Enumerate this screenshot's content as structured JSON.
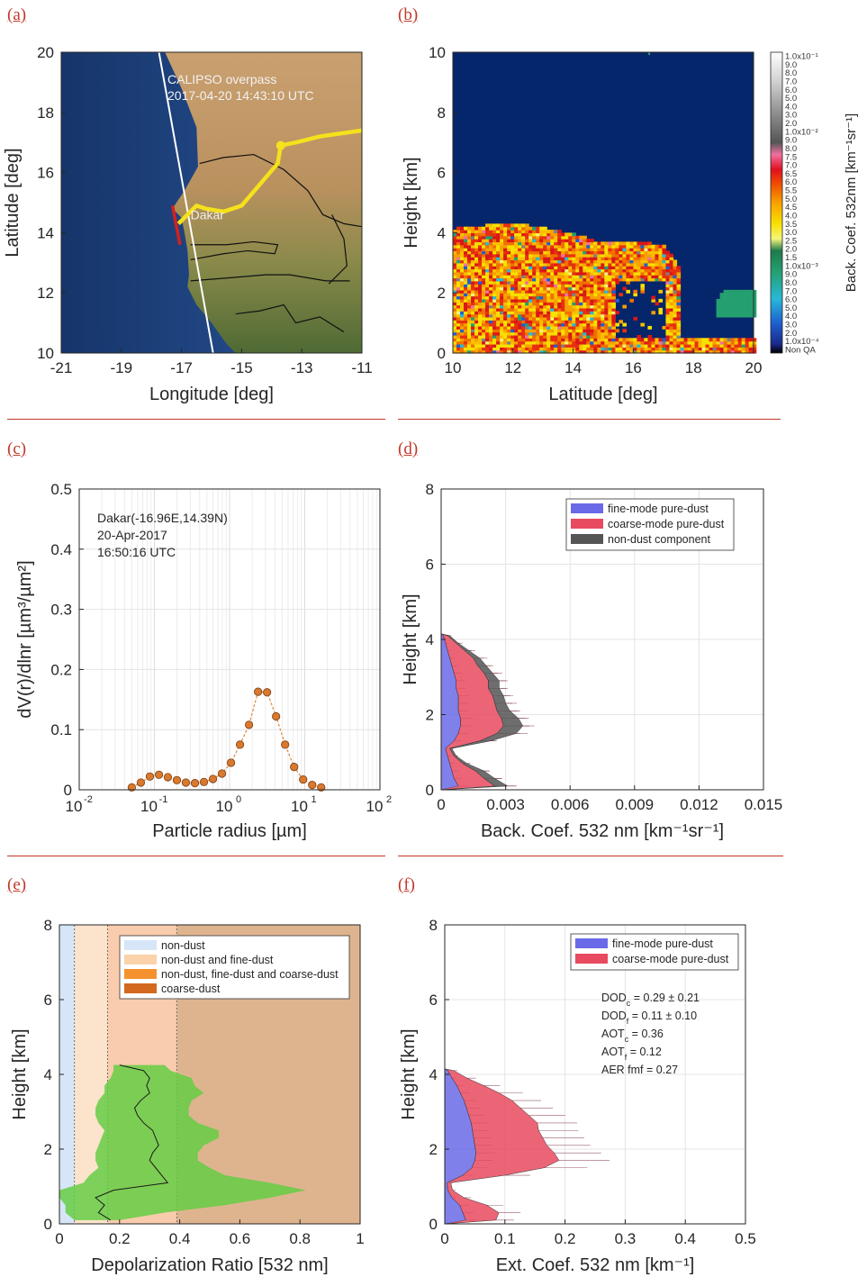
{
  "panel_letters": [
    "(a)",
    "(b)",
    "(c)",
    "(d)",
    "(e)",
    "(f)"
  ],
  "colors": {
    "accent_red": "#c0392b",
    "ocean": "#1d3f7a",
    "land": "#b88a55",
    "track": "#f5e11c",
    "coarse": "#e84a5f",
    "fine": "#6a6ae8",
    "nondust": "#555555",
    "depol_fill": "#66cc44"
  },
  "chart_data": [
    {
      "id": "a",
      "type": "map",
      "xlabel": "Longitude [deg]",
      "ylabel": "Latitude [deg]",
      "xlim": [
        -21,
        -11
      ],
      "ylim": [
        10,
        20
      ],
      "xticks": [
        "-21",
        "-19",
        "-17",
        "-15",
        "-13",
        "-11"
      ],
      "yticks": [
        "10",
        "12",
        "14",
        "16",
        "18",
        "20"
      ],
      "annotation_title": "CALIPSO overpass",
      "annotation_time": "2017-04-20 14:43:10 UTC",
      "city_label": "Dakar",
      "city": [
        -16.96,
        14.39
      ],
      "calipso_track": [
        [
          -17.75,
          20
        ],
        [
          -15.95,
          10
        ]
      ],
      "highlight_segment": [
        [
          -17.3,
          14.9
        ],
        [
          -17.05,
          13.6
        ]
      ],
      "yellow_track": [
        [
          -17.1,
          14.3
        ],
        [
          -16.8,
          14.6
        ],
        [
          -16.5,
          14.9
        ],
        [
          -16.2,
          14.8
        ],
        [
          -15.6,
          14.7
        ],
        [
          -15.0,
          14.9
        ],
        [
          -14.4,
          15.6
        ],
        [
          -13.8,
          16.3
        ],
        [
          -13.7,
          16.9
        ],
        [
          -13.2,
          17.0
        ],
        [
          -12.4,
          17.2
        ],
        [
          -11.0,
          17.4
        ]
      ]
    },
    {
      "id": "b",
      "type": "heatmap",
      "xlabel": "Latitude [deg]",
      "ylabel": "Height [km]",
      "xlim": [
        10,
        20
      ],
      "ylim": [
        0,
        10
      ],
      "xticks": [
        "10",
        "12",
        "14",
        "16",
        "18",
        "20"
      ],
      "yticks": [
        "0",
        "2",
        "4",
        "6",
        "8",
        "10"
      ],
      "colorbar_label": "Back. Coef. 532nm [km⁻¹sr⁻¹]",
      "colorbar_ticks": [
        "1.0x10⁻¹",
        "9.0",
        "8.0",
        "7.0",
        "6.0",
        "5.0",
        "4.0",
        "3.0",
        "2.0",
        "1.0x10⁻²",
        "9.0",
        "8.0",
        "7.5",
        "7.0",
        "6.5",
        "6.0",
        "5.5",
        "5.0",
        "4.5",
        "4.0",
        "3.5",
        "3.0",
        "2.5",
        "2.0",
        "1.5",
        "1.0x10⁻³",
        "9.0",
        "8.0",
        "7.0",
        "6.0",
        "5.0",
        "4.0",
        "3.0",
        "2.0",
        "1.0x10⁻⁴",
        "Non QA"
      ],
      "aerosol_top_profile": [
        [
          10,
          4.1
        ],
        [
          11,
          4.2
        ],
        [
          12,
          4.3
        ],
        [
          13,
          4.1
        ],
        [
          14,
          3.9
        ],
        [
          15,
          3.6
        ],
        [
          16,
          3.7
        ],
        [
          17,
          3.5
        ],
        [
          17.5,
          2.8
        ],
        [
          18,
          0.6
        ],
        [
          19,
          2.1
        ],
        [
          20,
          2.7
        ]
      ]
    },
    {
      "id": "c",
      "type": "scatter",
      "xscale": "log",
      "xlabel": "Particle radius [µm]",
      "ylabel": "dV(r)/dlnr [µm³/µm²]",
      "xlim": [
        0.01,
        100
      ],
      "ylim": [
        0,
        0.5
      ],
      "yticks": [
        "0",
        "0.1",
        "0.2",
        "0.3",
        "0.4",
        "0.5"
      ],
      "annotation": [
        "Dakar(-16.96E,14.39N)",
        "20-Apr-2017",
        "16:50:16 UTC"
      ],
      "x": [
        0.05,
        0.066,
        0.087,
        0.115,
        0.151,
        0.199,
        0.262,
        0.346,
        0.456,
        0.601,
        0.792,
        1.044,
        1.376,
        1.814,
        2.392,
        3.153,
        4.156,
        5.479,
        7.222,
        9.52,
        12.55,
        16.55
      ],
      "values": [
        0.004,
        0.012,
        0.022,
        0.025,
        0.021,
        0.016,
        0.012,
        0.011,
        0.013,
        0.018,
        0.027,
        0.045,
        0.075,
        0.108,
        0.163,
        0.162,
        0.122,
        0.075,
        0.038,
        0.017,
        0.008,
        0.004
      ]
    },
    {
      "id": "d",
      "type": "area",
      "xlabel": "Back. Coef. 532 nm [km⁻¹sr⁻¹]",
      "ylabel": "Height [km]",
      "xlim": [
        0,
        0.015
      ],
      "ylim": [
        0,
        8
      ],
      "xticks": [
        "0",
        "0.003",
        "0.006",
        "0.009",
        "0.012",
        "0.015"
      ],
      "yticks": [
        "0",
        "2",
        "4",
        "6",
        "8"
      ],
      "legend": "top-right",
      "heights": [
        0.1,
        0.3,
        0.5,
        0.7,
        0.9,
        1.1,
        1.3,
        1.5,
        1.7,
        1.9,
        2.1,
        2.3,
        2.5,
        2.7,
        2.9,
        3.1,
        3.3,
        3.5,
        3.7,
        3.9,
        4.1
      ],
      "series": [
        {
          "name": "fine-mode pure-dust",
          "values": [
            0.0008,
            0.0006,
            0.0005,
            0.0004,
            0.0003,
            0.0002,
            0.0006,
            0.0008,
            0.0009,
            0.0009,
            0.0008,
            0.0008,
            0.0008,
            0.0007,
            0.0007,
            0.0006,
            0.0005,
            0.0004,
            0.0003,
            0.0002,
            0.0001
          ]
        },
        {
          "name": "coarse-mode pure-dust",
          "values": [
            0.0017,
            0.0014,
            0.0011,
            0.0006,
            0.0003,
            0.0002,
            0.0012,
            0.0018,
            0.002,
            0.0019,
            0.0018,
            0.0017,
            0.0016,
            0.0015,
            0.0015,
            0.0014,
            0.0012,
            0.0011,
            0.0008,
            0.0005,
            0.0002
          ]
        },
        {
          "name": "non-dust component",
          "values": [
            0.0006,
            0.0005,
            0.0004,
            0.0002,
            0.0001,
            0.0001,
            0.0005,
            0.0009,
            0.0009,
            0.0008,
            0.0006,
            0.0005,
            0.0005,
            0.0005,
            0.0005,
            0.0004,
            0.0004,
            0.0003,
            0.0002,
            0.0001,
            0.0001
          ]
        }
      ]
    },
    {
      "id": "e",
      "type": "line",
      "xlabel": "Depolarization Ratio [532 nm]",
      "ylabel": "Height [km]",
      "xlim": [
        0,
        1
      ],
      "ylim": [
        0,
        8
      ],
      "xticks": [
        "0",
        "0.2",
        "0.4",
        "0.6",
        "0.8",
        "1"
      ],
      "yticks": [
        "0",
        "2",
        "4",
        "6",
        "8"
      ],
      "legend": "top-right",
      "regions": [
        {
          "name": "non-dust",
          "from": 0,
          "to": 0.05,
          "color": "#d6e6f8"
        },
        {
          "name": "non-dust and fine-dust",
          "from": 0.05,
          "to": 0.16,
          "color": "#fbe3cc"
        },
        {
          "name": "non-dust, fine-dust and coarse-dust",
          "from": 0.16,
          "to": 0.39,
          "color": "#f9ccae"
        },
        {
          "name": "coarse-dust",
          "from": 0.39,
          "to": 1,
          "color": "#deb48f"
        }
      ],
      "heights": [
        0.1,
        0.3,
        0.5,
        0.7,
        0.9,
        1.1,
        1.3,
        1.5,
        1.7,
        1.9,
        2.1,
        2.3,
        2.5,
        2.7,
        2.9,
        3.1,
        3.3,
        3.5,
        3.7,
        3.9,
        4.1,
        4.25
      ],
      "mean": [
        0.17,
        0.13,
        0.15,
        0.12,
        0.18,
        0.36,
        0.34,
        0.32,
        0.3,
        0.31,
        0.33,
        0.32,
        0.31,
        0.28,
        0.26,
        0.25,
        0.27,
        0.3,
        0.29,
        0.3,
        0.28,
        0.2
      ],
      "lower": [
        0.05,
        0.02,
        0.02,
        0.0,
        0.0,
        0.08,
        0.1,
        0.13,
        0.12,
        0.12,
        0.13,
        0.14,
        0.15,
        0.13,
        0.12,
        0.12,
        0.13,
        0.15,
        0.15,
        0.17,
        0.18,
        0.18
      ],
      "upper": [
        0.2,
        0.35,
        0.55,
        0.7,
        0.82,
        0.7,
        0.55,
        0.5,
        0.46,
        0.46,
        0.48,
        0.53,
        0.53,
        0.46,
        0.43,
        0.43,
        0.44,
        0.48,
        0.45,
        0.44,
        0.37,
        0.35
      ]
    },
    {
      "id": "f",
      "type": "area",
      "xlabel": "Ext. Coef. 532 nm [km⁻¹]",
      "ylabel": "Height [km]",
      "xlim": [
        0,
        0.5
      ],
      "ylim": [
        0,
        8
      ],
      "xticks": [
        "0",
        "0.1",
        "0.2",
        "0.3",
        "0.4",
        "0.5"
      ],
      "yticks": [
        "0",
        "2",
        "4",
        "6",
        "8"
      ],
      "legend": "top-right",
      "annotations": [
        "DOD = 0.29 ± 0.21",
        "DOD = 0.11 ± 0.10",
        "AOT = 0.36",
        "AOT = 0.12",
        "AER fmf = 0.27"
      ],
      "annotation_subscripts": [
        "c",
        "f",
        "c",
        "f",
        ""
      ],
      "heights": [
        0.1,
        0.3,
        0.5,
        0.7,
        0.9,
        1.1,
        1.3,
        1.5,
        1.7,
        1.9,
        2.1,
        2.3,
        2.5,
        2.7,
        2.9,
        3.1,
        3.3,
        3.5,
        3.7,
        3.9,
        4.1
      ],
      "series": [
        {
          "name": "fine-mode pure-dust",
          "values": [
            0.035,
            0.03,
            0.025,
            0.012,
            0.005,
            0.004,
            0.03,
            0.045,
            0.05,
            0.052,
            0.05,
            0.048,
            0.046,
            0.044,
            0.04,
            0.036,
            0.032,
            0.026,
            0.02,
            0.012,
            0.005
          ]
        },
        {
          "name": "coarse-mode pure-dust",
          "values": [
            0.05,
            0.06,
            0.045,
            0.02,
            0.008,
            0.006,
            0.07,
            0.12,
            0.14,
            0.13,
            0.12,
            0.115,
            0.11,
            0.11,
            0.1,
            0.09,
            0.08,
            0.065,
            0.045,
            0.025,
            0.01
          ]
        }
      ]
    }
  ]
}
